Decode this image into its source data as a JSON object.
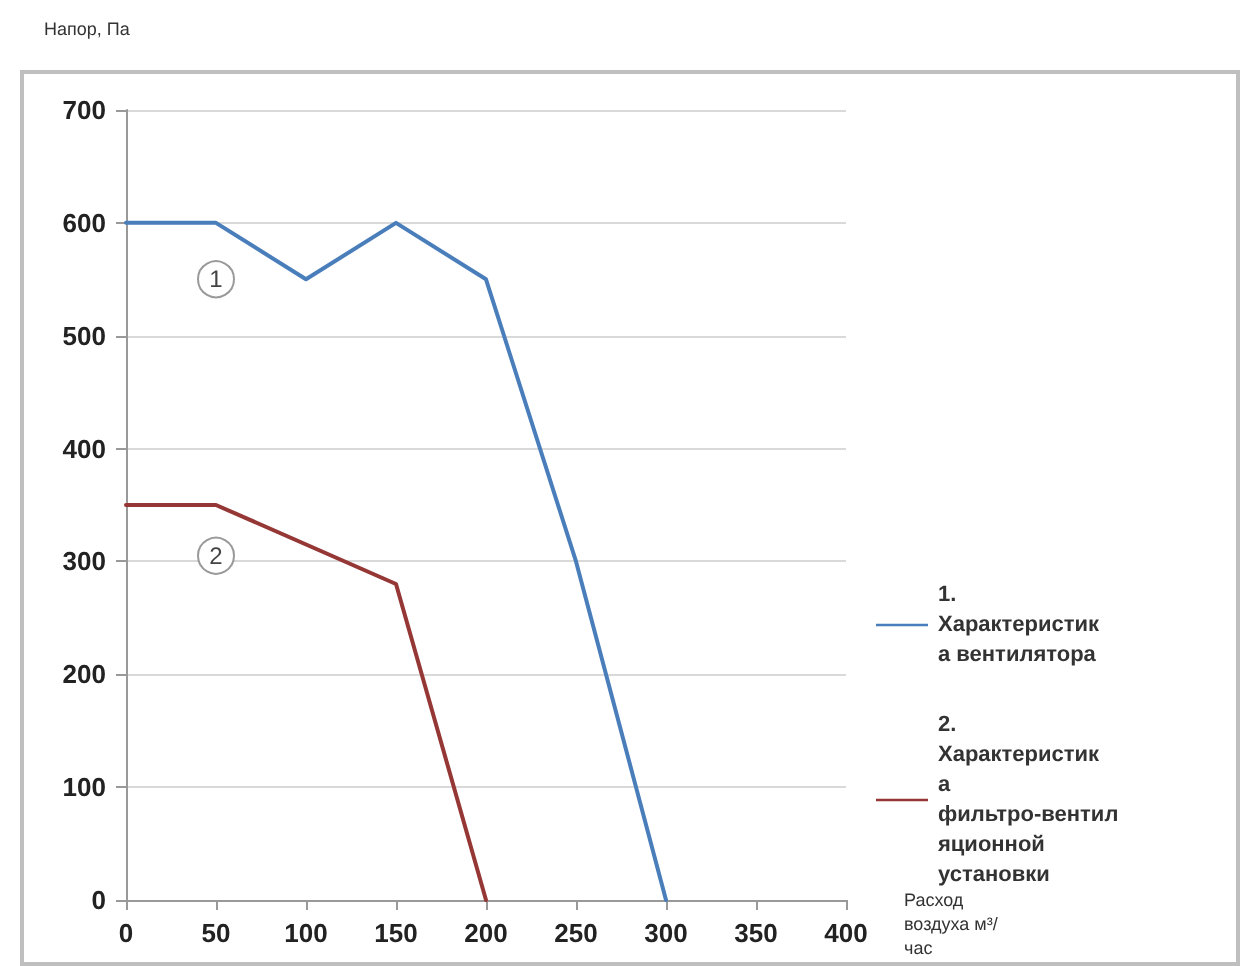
{
  "chart_data": {
    "type": "line",
    "xlabel": "Расход воздуха м³/час",
    "ylabel": "Напор, Па",
    "xlim": [
      0,
      400
    ],
    "xticks": [
      0,
      50,
      100,
      150,
      200,
      250,
      300,
      350,
      400
    ],
    "ylim": [
      0,
      700
    ],
    "yticks": [
      0,
      100,
      200,
      300,
      400,
      500,
      600,
      700
    ],
    "grid": "y",
    "legend": "right",
    "marker": "none",
    "line_style": "solid",
    "series": [
      {
        "name": "1. Характеристика вентилятора",
        "color": "#4a7ebb",
        "x": [
          0,
          50,
          100,
          150,
          200,
          250,
          300
        ],
        "values": [
          600,
          600,
          550,
          600,
          550,
          300,
          0
        ]
      },
      {
        "name": "2. Характеристика фильтро-вентиляционной установки",
        "color": "#953735",
        "x": [
          0,
          50,
          150,
          200
        ],
        "values": [
          350,
          350,
          280,
          0
        ]
      }
    ],
    "annotations": [
      {
        "text": "1",
        "x": 50,
        "y": 550
      },
      {
        "text": "2",
        "x": 50,
        "y": 305
      }
    ]
  }
}
